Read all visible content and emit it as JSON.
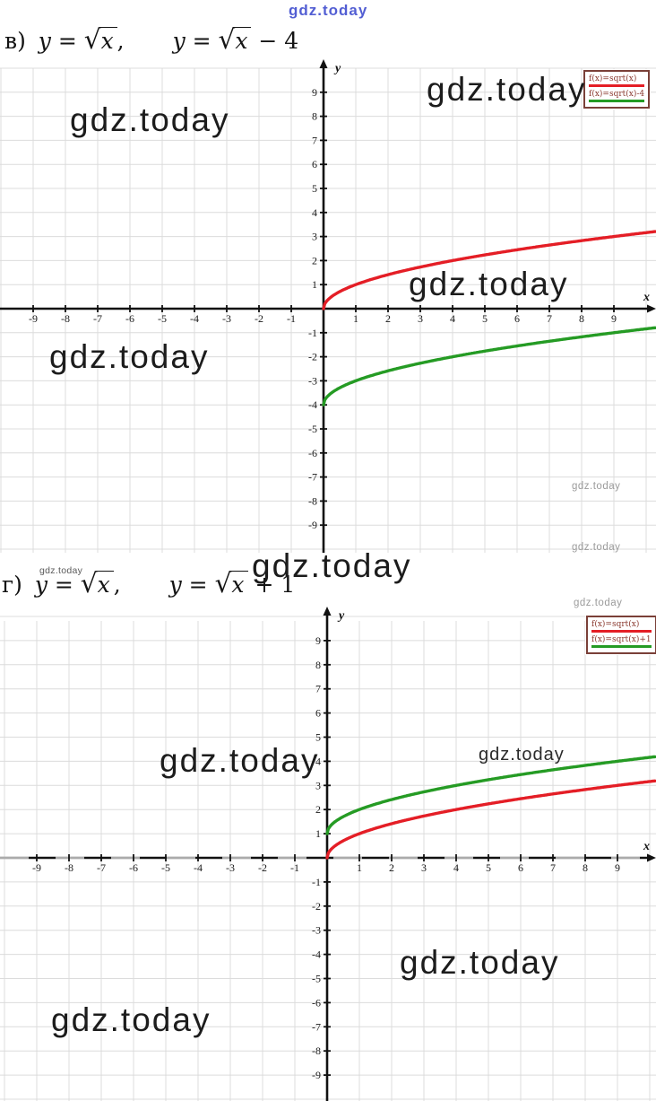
{
  "watermark": {
    "text": "gdz.today",
    "blue_color": "#4451d0",
    "dark_color": "#1c1c1c",
    "gray_color": "#9b9b9b"
  },
  "symbols": {
    "radical": "√"
  },
  "problems": [
    {
      "item": "в)",
      "eq1": {
        "var": "y",
        "op": " = ",
        "radicand": "x",
        "tail": ","
      },
      "eq2": {
        "var": "y",
        "op": " = ",
        "radicand": "x",
        "tail": " − 4"
      }
    },
    {
      "item": "г)",
      "eq1": {
        "var": "y",
        "op": " = ",
        "radicand": "x",
        "tail": ","
      },
      "eq2": {
        "var": "y",
        "op": " = ",
        "radicand": "x",
        "tail": " + 1"
      }
    }
  ],
  "chart_data": [
    {
      "type": "line",
      "title": "y = sqrt(x),  y = sqrt(x) - 4",
      "xlabel": "x",
      "ylabel": "y",
      "xlim": [
        -10.3,
        10.3
      ],
      "ylim": [
        -10.5,
        10.5
      ],
      "grid": true,
      "xticks": [
        -9,
        -8,
        -7,
        -6,
        -5,
        -4,
        -3,
        -2,
        -1,
        1,
        2,
        3,
        4,
        5,
        6,
        7,
        8,
        9
      ],
      "yticks": [
        -9,
        -8,
        -7,
        -6,
        -5,
        -4,
        -3,
        -2,
        -1,
        1,
        2,
        3,
        4,
        5,
        6,
        7,
        8,
        9
      ],
      "legend": {
        "position": "top-right",
        "entries": [
          {
            "label": "f(x)=sqrt(x)",
            "color": "#e41e26"
          },
          {
            "label": "f(x)=sqrt(x)-4",
            "color": "#259b24"
          }
        ]
      },
      "series": [
        {
          "name": "f(x)=sqrt(x)",
          "fn": "sqrt(x)",
          "offset": 0,
          "color": "#e41e26",
          "domain": [
            0,
            10.3
          ],
          "points": [
            [
              0,
              0
            ],
            [
              1,
              1
            ],
            [
              2,
              1.41
            ],
            [
              3,
              1.73
            ],
            [
              4,
              2
            ],
            [
              5,
              2.24
            ],
            [
              6,
              2.45
            ],
            [
              7,
              2.65
            ],
            [
              8,
              2.83
            ],
            [
              9,
              3
            ],
            [
              10,
              3.16
            ]
          ]
        },
        {
          "name": "f(x)=sqrt(x)-4",
          "fn": "sqrt(x)-4",
          "offset": -4,
          "color": "#259b24",
          "domain": [
            0,
            10.3
          ],
          "points": [
            [
              0,
              -4
            ],
            [
              1,
              -3
            ],
            [
              2,
              -2.59
            ],
            [
              3,
              -2.27
            ],
            [
              4,
              -2
            ],
            [
              5,
              -1.76
            ],
            [
              6,
              -1.55
            ],
            [
              7,
              -1.35
            ],
            [
              8,
              -1.17
            ],
            [
              9,
              -1
            ],
            [
              10,
              -0.84
            ]
          ]
        }
      ]
    },
    {
      "type": "line",
      "title": "y = sqrt(x),  y = sqrt(x) + 1",
      "xlabel": "x",
      "ylabel": "y",
      "xlim": [
        -10.3,
        10.3
      ],
      "ylim": [
        -10.5,
        10.5
      ],
      "grid": true,
      "xticks": [
        -9,
        -8,
        -7,
        -6,
        -5,
        -4,
        -3,
        -2,
        -1,
        1,
        2,
        3,
        4,
        5,
        6,
        7,
        8,
        9
      ],
      "yticks": [
        -9,
        -8,
        -7,
        -6,
        -5,
        -4,
        -3,
        -2,
        -1,
        1,
        2,
        3,
        4,
        5,
        6,
        7,
        8,
        9
      ],
      "legend": {
        "position": "top-right",
        "entries": [
          {
            "label": "f(x)=sqrt(x)",
            "color": "#e41e26"
          },
          {
            "label": "f(x)=sqrt(x)+1",
            "color": "#259b24"
          }
        ]
      },
      "series": [
        {
          "name": "f(x)=sqrt(x)",
          "fn": "sqrt(x)",
          "offset": 0,
          "color": "#e41e26",
          "domain": [
            0,
            10.2
          ],
          "points": [
            [
              0,
              0
            ],
            [
              1,
              1
            ],
            [
              2,
              1.41
            ],
            [
              3,
              1.73
            ],
            [
              4,
              2
            ],
            [
              5,
              2.24
            ],
            [
              6,
              2.45
            ],
            [
              7,
              2.65
            ],
            [
              8,
              2.83
            ],
            [
              9,
              3
            ],
            [
              10,
              3.16
            ]
          ]
        },
        {
          "name": "f(x)=sqrt(x)+1",
          "fn": "sqrt(x)+1",
          "offset": 1,
          "color": "#259b24",
          "domain": [
            0,
            10.2
          ],
          "points": [
            [
              0,
              1
            ],
            [
              1,
              2
            ],
            [
              2,
              2.41
            ],
            [
              3,
              2.73
            ],
            [
              4,
              3
            ],
            [
              5,
              3.24
            ],
            [
              6,
              3.45
            ],
            [
              7,
              3.65
            ],
            [
              8,
              3.83
            ],
            [
              9,
              4
            ],
            [
              10,
              4.16
            ]
          ]
        }
      ]
    }
  ]
}
